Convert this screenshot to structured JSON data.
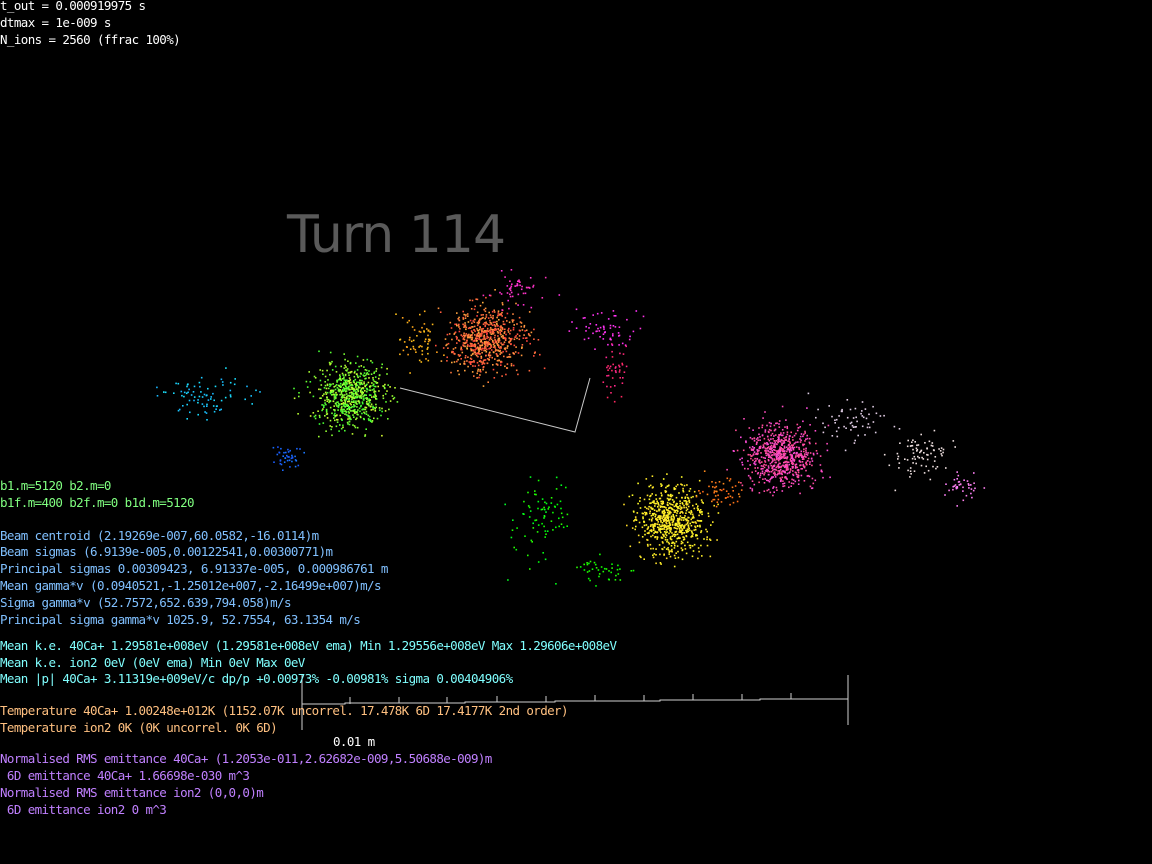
{
  "header": {
    "t_out": "t_out = 0.000919975 s",
    "dtmax": "dtmax = 1e-009 s",
    "n_ions": "N_ions = 2560 (ffrac 100%)"
  },
  "turn_label": "Turn 114",
  "scale_bar_label": "0.01 m",
  "bunch_info": [
    "b1.m=5120 b2.m=0",
    "b1f.m=400 b2f.m=0 b1d.m=5120"
  ],
  "beam_stats": [
    "Beam centroid (2.19269e-007,60.0582,-16.0114)m",
    "Beam sigmas (6.9139e-005,0.00122541,0.00300771)m",
    "Principal sigmas 0.00309423, 6.91337e-005, 0.000986761 m",
    "Mean gamma*v (0.0940521,-1.25012e+007,-2.16499e+007)m/s",
    "Sigma gamma*v (52.7572,652.639,794.058)m/s",
    "Principal sigma gamma*v 1025.9, 52.7554, 63.1354 m/s"
  ],
  "energy_stats": [
    "Mean k.e. 40Ca+ 1.29581e+008eV (1.29581e+008eV ema) Min 1.29556e+008eV Max 1.29606e+008eV",
    "Mean k.e. ion2 0eV (0eV ema) Min 0eV Max 0eV",
    "Mean |p| 40Ca+ 3.11319e+009eV/c dp/p +0.00973% -0.00981% sigma 0.00404906%"
  ],
  "temperature_stats": [
    "Temperature 40Ca+ 1.00248e+012K (1152.07K uncorrel. 17.478K 6D 17.4177K 2nd order)",
    "Temperature ion2 0K (0K uncorrel. 0K 6D)"
  ],
  "emittance_stats": [
    "Normalised RMS emittance 40Ca+ (1.2053e-011,2.62682e-009,5.50688e-009)m",
    " 6D emittance 40Ca+ 1.66698e-030 m^3",
    "Normalised RMS emittance ion2 (0,0,0)m",
    " 6D emittance ion2 0 m^3"
  ],
  "colors": {
    "background": "#000000",
    "header_text": "#ffffff",
    "bunch_text": "#80ff80",
    "beam_text": "#80c0ff",
    "energy_text": "#80ffff",
    "temperature_text": "#ffc080",
    "emittance_text": "#c080ff",
    "turn_text": "#5a5a5a"
  }
}
